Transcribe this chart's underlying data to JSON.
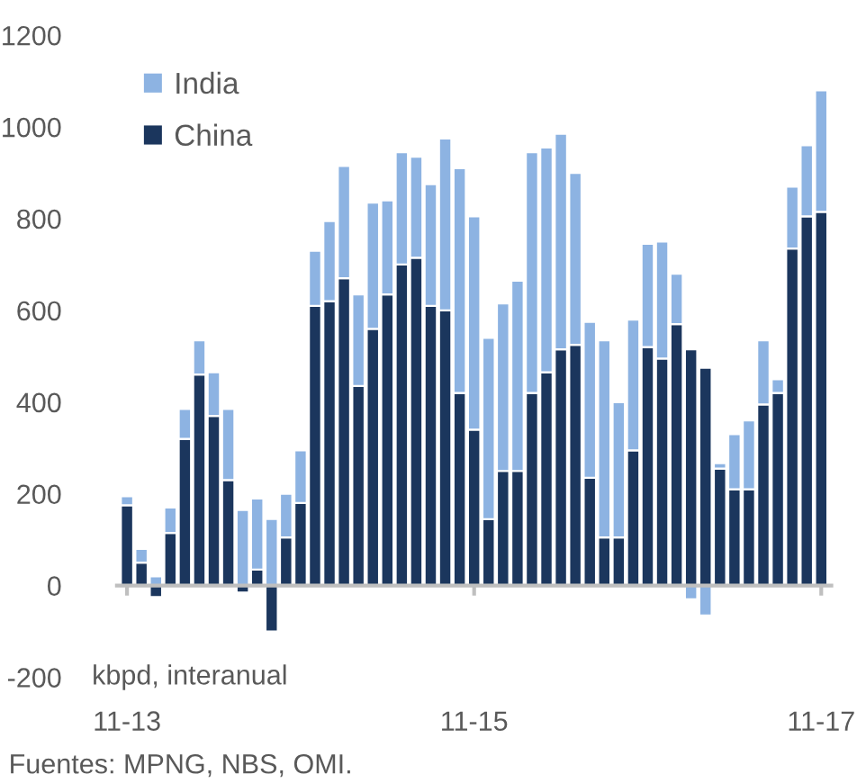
{
  "chart_data": {
    "type": "bar",
    "stacked": true,
    "ylabel": "kbpd, interanual",
    "categories": [
      "11-13",
      null,
      null,
      null,
      null,
      null,
      null,
      null,
      null,
      null,
      null,
      null,
      null,
      null,
      null,
      null,
      null,
      null,
      null,
      null,
      null,
      null,
      null,
      null,
      "11-15",
      null,
      null,
      null,
      null,
      null,
      null,
      null,
      null,
      null,
      null,
      null,
      null,
      null,
      null,
      null,
      null,
      null,
      null,
      null,
      null,
      null,
      null,
      null,
      "11-17"
    ],
    "series": [
      {
        "name": "China",
        "color": "#1b365d",
        "values": [
          175,
          50,
          -25,
          115,
          320,
          460,
          370,
          230,
          -15,
          35,
          -100,
          105,
          180,
          610,
          620,
          670,
          435,
          560,
          635,
          700,
          715,
          610,
          600,
          420,
          340,
          145,
          250,
          250,
          420,
          465,
          515,
          525,
          235,
          105,
          105,
          295,
          520,
          495,
          570,
          515,
          475,
          255,
          210,
          210,
          395,
          420,
          735,
          805,
          815
        ]
      },
      {
        "name": "India",
        "color": "#8db3e2",
        "values": [
          20,
          30,
          20,
          55,
          65,
          75,
          95,
          155,
          165,
          155,
          145,
          95,
          115,
          120,
          175,
          245,
          200,
          275,
          205,
          245,
          220,
          265,
          375,
          490,
          465,
          395,
          365,
          415,
          525,
          490,
          470,
          375,
          340,
          430,
          295,
          285,
          225,
          255,
          110,
          -30,
          -65,
          12,
          120,
          150,
          140,
          30,
          135,
          155,
          265
        ]
      }
    ],
    "ylim": [
      -200,
      1200
    ],
    "yticks": [
      -200,
      0,
      200,
      400,
      600,
      800,
      1000,
      1200
    ],
    "legend": "top left",
    "annotations": [
      "Fuentes: MPNG, NBS, OMI."
    ]
  }
}
